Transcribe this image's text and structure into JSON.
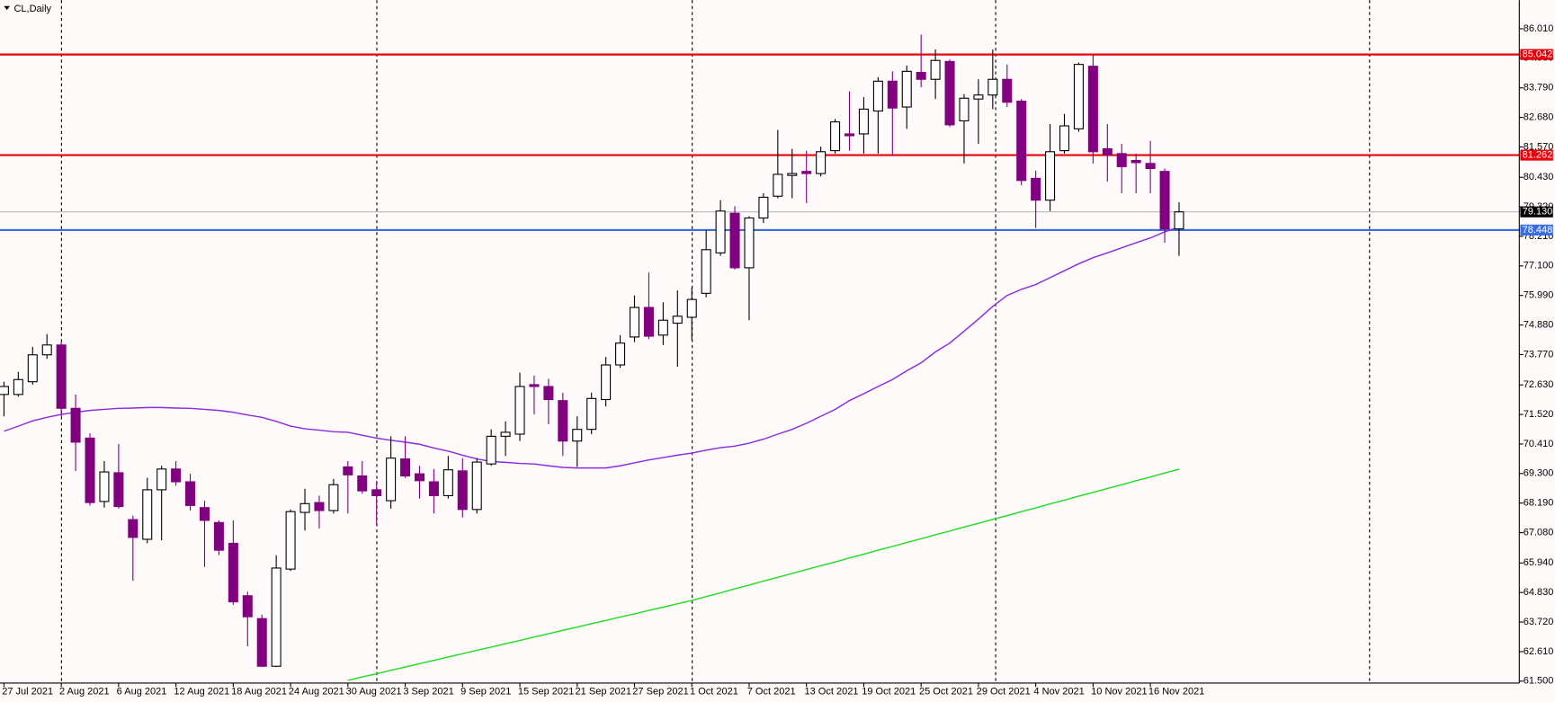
{
  "chart_data": {
    "type": "candlestick",
    "title": "CL,Daily",
    "categories": [
      "27 Jul 2021",
      null,
      null,
      null,
      "2 Aug 2021",
      null,
      null,
      null,
      "6 Aug 2021",
      null,
      null,
      null,
      "12 Aug 2021",
      null,
      null,
      null,
      "18 Aug 2021",
      null,
      null,
      null,
      "24 Aug 2021",
      null,
      null,
      null,
      "30 Aug 2021",
      null,
      null,
      null,
      "3 Sep 2021",
      null,
      null,
      null,
      "9 Sep 2021",
      null,
      null,
      null,
      "15 Sep 2021",
      null,
      null,
      null,
      "21 Sep 2021",
      null,
      null,
      null,
      "27 Sep 2021",
      null,
      null,
      null,
      "1 Oct 2021",
      null,
      null,
      null,
      "7 Oct 2021",
      null,
      null,
      null,
      "13 Oct 2021",
      null,
      null,
      null,
      "19 Oct 2021",
      null,
      null,
      null,
      "25 Oct 2021",
      null,
      null,
      null,
      "29 Oct 2021",
      null,
      null,
      null,
      "4 Nov 2021",
      null,
      null,
      null,
      "10 Nov 2021",
      null,
      null,
      null,
      "16 Nov 2021",
      null,
      null
    ],
    "open": [
      72.27,
      72.27,
      72.75,
      73.76,
      74.13,
      71.75,
      70.63,
      68.25,
      69.33,
      67.57,
      66.83,
      68.69,
      69.47,
      68.99,
      68.02,
      67.46,
      66.68,
      64.71,
      63.85,
      62.06,
      65.71,
      67.84,
      68.21,
      67.91,
      69.55,
      69.21,
      68.69,
      68.28,
      69.85,
      69.29,
      68.99,
      68.47,
      69.4,
      67.95,
      69.66,
      70.7,
      70.78,
      72.64,
      72.57,
      72.04,
      70.52,
      70.96,
      72.08,
      73.38,
      74.43,
      75.54,
      74.5,
      74.95,
      75.17,
      76.07,
      77.59,
      79.08,
      77.03,
      78.9,
      79.72,
      80.5,
      80.65,
      80.57,
      81.43,
      82.06,
      82.06,
      82.92,
      84.04,
      83.07,
      84.37,
      84.11,
      84.78,
      82.55,
      83.37,
      83.52,
      84.11,
      83.29,
      80.39,
      79.57,
      81.43,
      82.25,
      84.6,
      81.5,
      81.32,
      81.06,
      80.95,
      80.65,
      78.49
    ],
    "high": [
      72.75,
      73.12,
      74.06,
      74.54,
      74.24,
      72.27,
      70.81,
      69.77,
      70.41,
      67.72,
      69.14,
      69.59,
      69.77,
      69.29,
      68.28,
      67.54,
      67.54,
      64.86,
      64.0,
      66.23,
      67.95,
      68.73,
      68.47,
      69.1,
      69.77,
      69.77,
      69.03,
      70.7,
      70.7,
      69.59,
      69.47,
      69.96,
      69.88,
      69.88,
      70.96,
      71.26,
      73.09,
      72.98,
      72.86,
      72.34,
      71.45,
      72.34,
      73.68,
      74.5,
      75.99,
      76.85,
      75.73,
      76.18,
      76.29,
      78.45,
      79.57,
      79.34,
      78.97,
      79.83,
      82.21,
      81.5,
      81.43,
      81.58,
      82.62,
      83.66,
      83.44,
      84.19,
      84.41,
      84.63,
      85.79,
      85.23,
      84.86,
      83.55,
      84.11,
      85.23,
      84.67,
      83.37,
      80.68,
      82.43,
      82.81,
      84.74,
      85.04,
      82.43,
      81.69,
      81.32,
      81.8,
      80.76,
      79.49
    ],
    "low": [
      71.45,
      72.19,
      72.64,
      73.61,
      71.45,
      69.4,
      68.1,
      68.02,
      67.98,
      65.27,
      66.68,
      66.79,
      68.84,
      67.91,
      65.79,
      66.23,
      64.37,
      62.81,
      62.03,
      62.03,
      65.64,
      67.16,
      67.24,
      67.8,
      67.8,
      68.54,
      67.35,
      67.98,
      69.14,
      68.36,
      67.8,
      68.36,
      67.65,
      67.8,
      69.59,
      69.96,
      70.52,
      71.52,
      71.15,
      69.96,
      69.55,
      70.78,
      71.82,
      73.27,
      74.24,
      74.35,
      74.13,
      73.31,
      74.32,
      75.92,
      77.48,
      76.96,
      75.06,
      78.71,
      79.64,
      79.64,
      79.46,
      80.46,
      81.32,
      81.43,
      81.32,
      81.32,
      81.24,
      82.25,
      83.81,
      83.37,
      82.32,
      80.95,
      81.69,
      82.99,
      83.07,
      80.13,
      78.52,
      79.16,
      81.32,
      82.14,
      80.95,
      80.27,
      79.83,
      79.83,
      79.83,
      77.97,
      77.48
    ],
    "close": [
      72.57,
      72.83,
      73.76,
      74.13,
      71.75,
      70.48,
      68.21,
      69.36,
      68.06,
      66.9,
      68.69,
      69.47,
      68.99,
      68.1,
      67.54,
      66.42,
      64.48,
      63.92,
      62.06,
      65.75,
      67.87,
      68.17,
      67.91,
      68.88,
      69.25,
      68.65,
      68.47,
      69.88,
      69.21,
      69.03,
      68.47,
      69.44,
      67.95,
      69.73,
      70.7,
      70.85,
      72.57,
      72.57,
      72.08,
      70.52,
      70.96,
      72.12,
      73.38,
      74.2,
      75.54,
      74.46,
      75.06,
      75.21,
      75.84,
      77.71,
      79.16,
      77.03,
      78.9,
      79.68,
      80.54,
      80.57,
      80.57,
      81.39,
      82.51,
      81.99,
      82.99,
      84.04,
      83.03,
      84.41,
      84.11,
      84.82,
      82.4,
      83.4,
      83.52,
      84.11,
      83.25,
      80.31,
      79.57,
      81.39,
      82.36,
      84.67,
      81.39,
      81.28,
      80.83,
      80.98,
      80.76,
      78.49,
      79.13
    ],
    "up_color": "#ffffff",
    "down_color": "#800080",
    "outline_color": "#000000",
    "moving_averages": [
      {
        "color": "#8a2be2",
        "values": [
          70.89,
          71.08,
          71.28,
          71.41,
          71.52,
          71.6,
          71.67,
          71.71,
          71.75,
          71.76,
          71.78,
          71.78,
          71.76,
          71.75,
          71.71,
          71.67,
          71.6,
          71.5,
          71.41,
          71.26,
          71.08,
          70.98,
          70.93,
          70.87,
          70.85,
          70.74,
          70.63,
          70.55,
          70.48,
          70.4,
          70.26,
          70.14,
          69.99,
          69.85,
          69.75,
          69.72,
          69.68,
          69.66,
          69.59,
          69.53,
          69.51,
          69.51,
          69.51,
          69.59,
          69.7,
          69.81,
          69.9,
          69.99,
          70.07,
          70.18,
          70.27,
          70.33,
          70.44,
          70.59,
          70.78,
          70.96,
          71.19,
          71.45,
          71.71,
          72.04,
          72.3,
          72.57,
          72.83,
          73.16,
          73.46,
          73.87,
          74.2,
          74.65,
          75.1,
          75.58,
          75.99,
          76.22,
          76.4,
          76.66,
          76.92,
          77.18,
          77.41,
          77.59,
          77.78,
          77.97,
          78.15,
          78.38,
          78.56
        ]
      },
      {
        "color": "#22dd22",
        "values": [
          null,
          null,
          null,
          null,
          null,
          null,
          null,
          null,
          null,
          null,
          null,
          null,
          null,
          null,
          null,
          null,
          null,
          null,
          null,
          null,
          null,
          null,
          null,
          null,
          61.53,
          61.66,
          61.78,
          61.91,
          62.03,
          62.16,
          62.28,
          62.41,
          62.53,
          62.66,
          62.78,
          62.91,
          63.03,
          63.16,
          63.28,
          63.41,
          63.53,
          63.66,
          63.78,
          63.91,
          64.03,
          64.16,
          64.28,
          64.41,
          64.53,
          64.68,
          64.82,
          64.97,
          65.11,
          65.26,
          65.4,
          65.55,
          65.69,
          65.84,
          65.98,
          66.13,
          66.27,
          66.42,
          66.56,
          66.71,
          66.85,
          67.0,
          67.14,
          67.29,
          67.43,
          67.58,
          67.72,
          67.87,
          68.01,
          68.16,
          68.3,
          68.45,
          68.59,
          68.74,
          68.88,
          69.03,
          69.17,
          69.32,
          69.46
        ]
      }
    ],
    "levels": [
      {
        "value": 85.042,
        "label": "85.042",
        "color": "#e8000b",
        "label_color": "#e8000b"
      },
      {
        "value": 81.262,
        "label": "81.262",
        "color": "#e8000b",
        "label_color": "#e8000b"
      },
      {
        "value": 79.13,
        "label": "79.130",
        "color": "#b8b8b8",
        "label_color": "#000000"
      },
      {
        "value": 78.448,
        "label": "78.448",
        "color": "#3a6ee0",
        "label_color": "#3a6ee0"
      }
    ],
    "ylim": [
      61.43,
      87.01
    ],
    "yticks": [
      {
        "value": 61.5,
        "label": "61.500"
      },
      {
        "value": 62.61,
        "label": "62.610"
      },
      {
        "value": 63.72,
        "label": "63.720"
      },
      {
        "value": 64.83,
        "label": "64.830"
      },
      {
        "value": 65.94,
        "label": "65.940"
      },
      {
        "value": 67.08,
        "label": "67.080"
      },
      {
        "value": 68.19,
        "label": "68.190"
      },
      {
        "value": 69.3,
        "label": "69.300"
      },
      {
        "value": 70.41,
        "label": "70.410"
      },
      {
        "value": 71.52,
        "label": "71.520"
      },
      {
        "value": 72.63,
        "label": "72.630"
      },
      {
        "value": 73.77,
        "label": "73.770"
      },
      {
        "value": 74.88,
        "label": "74.880"
      },
      {
        "value": 75.99,
        "label": "75.990"
      },
      {
        "value": 77.1,
        "label": "77.100"
      },
      {
        "value": 78.21,
        "label": "78.210"
      },
      {
        "value": 79.32,
        "label": "79.320"
      },
      {
        "value": 80.43,
        "label": "80.430"
      },
      {
        "value": 81.57,
        "label": "81.570"
      },
      {
        "value": 82.68,
        "label": "82.680"
      },
      {
        "value": 83.79,
        "label": "83.790"
      },
      {
        "value": 84.9,
        "label": "84.900"
      },
      {
        "value": 86.01,
        "label": "86.010"
      }
    ]
  }
}
